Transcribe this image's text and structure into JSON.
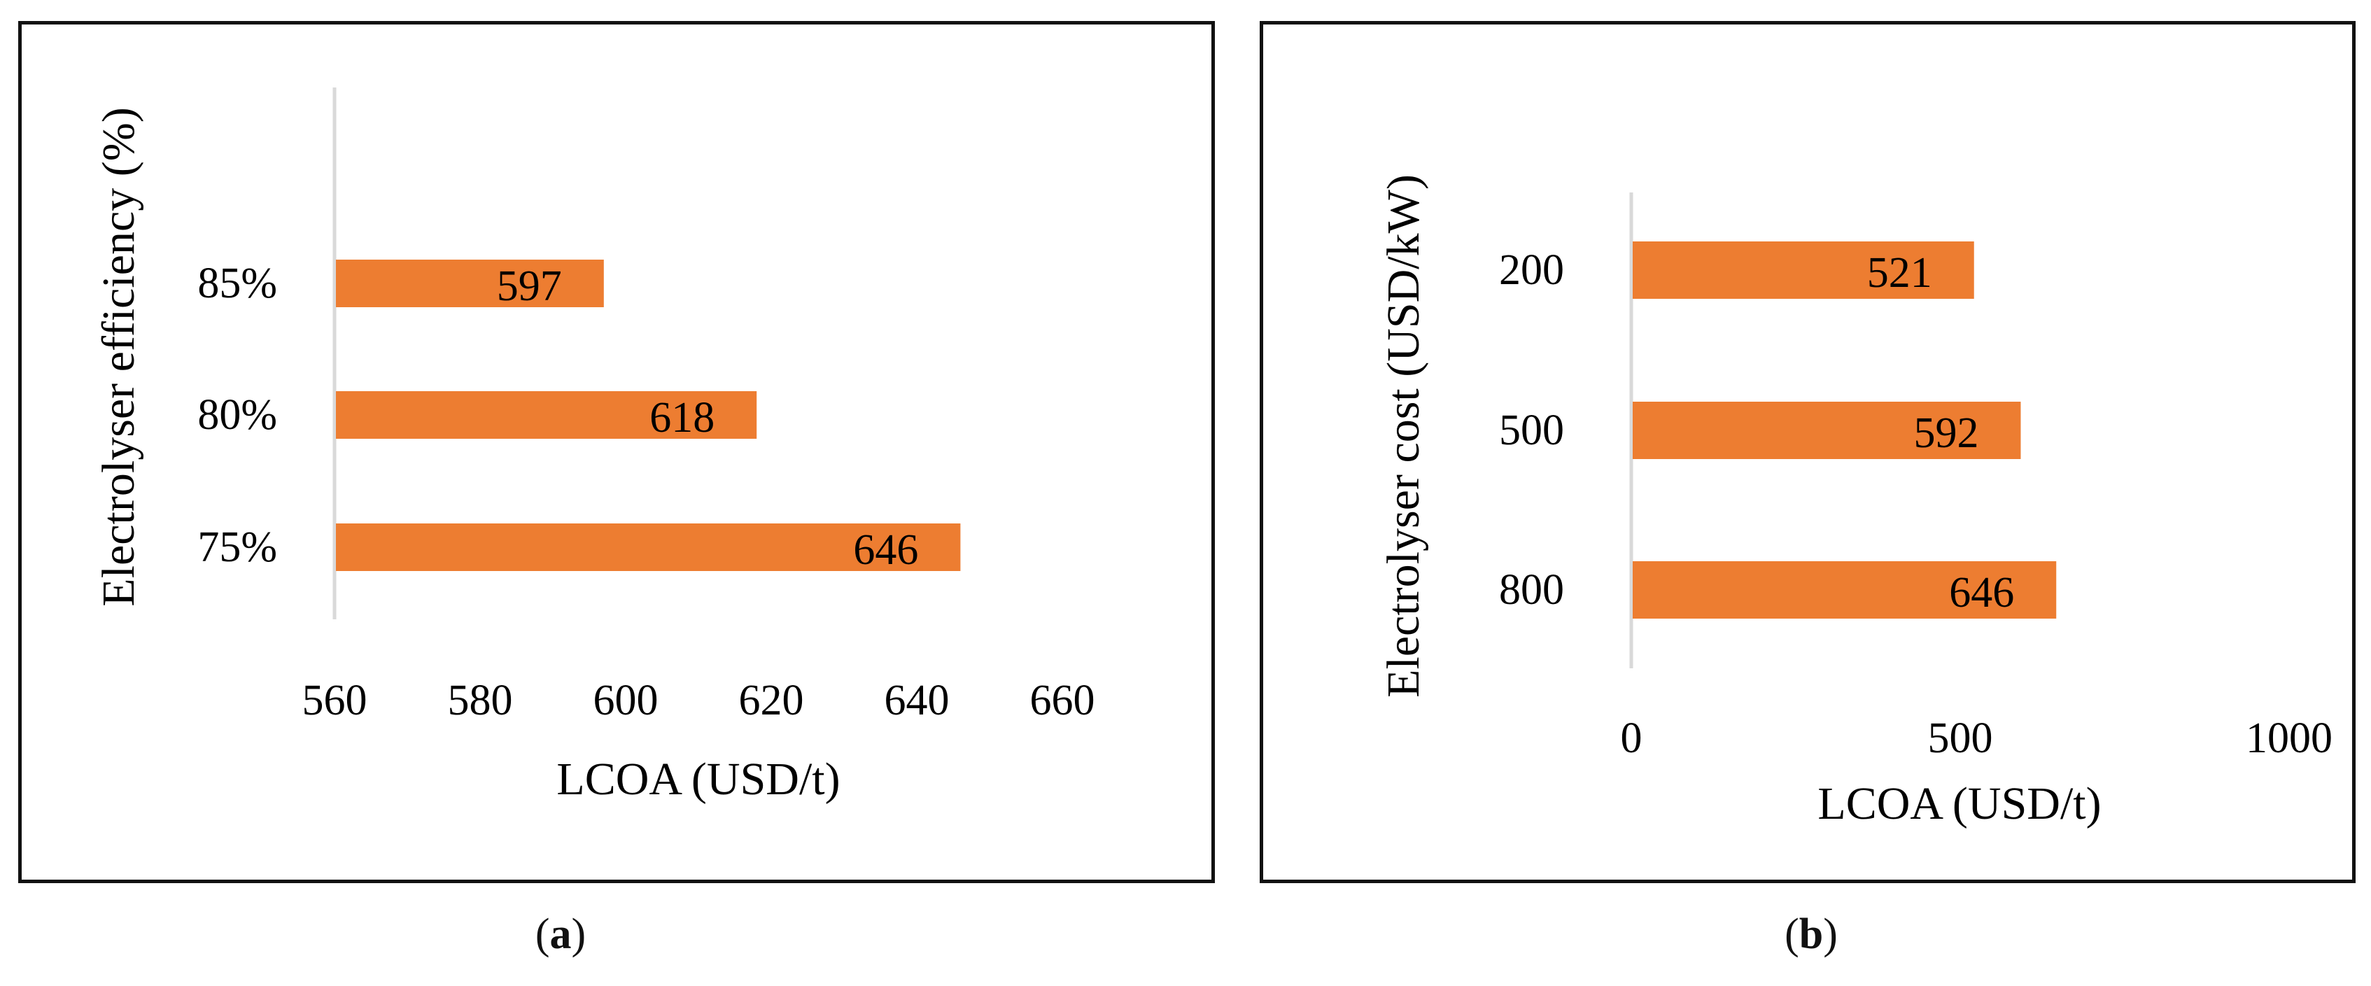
{
  "chart_data": [
    {
      "type": "bar",
      "orientation": "horizontal",
      "panel": "a",
      "categories": [
        "85%",
        "80%",
        "75%"
      ],
      "values": [
        597,
        618,
        646
      ],
      "xlabel": "LCOA (USD/t)",
      "ylabel": "Electrolyser efficiency (%)",
      "xlim": [
        560,
        660
      ],
      "xticks": [
        "560",
        "580",
        "600",
        "620",
        "640",
        "660"
      ],
      "bar_color": "#ED7D31",
      "data_labels": [
        "597",
        "618",
        "646"
      ],
      "grid": false
    },
    {
      "type": "bar",
      "orientation": "horizontal",
      "panel": "b",
      "categories": [
        "200",
        "500",
        "800"
      ],
      "values": [
        521,
        592,
        646
      ],
      "xlabel": "LCOA (USD/t)",
      "ylabel": "Electrolyser cost (USD/kW)",
      "xlim": [
        0,
        1000
      ],
      "xticks": [
        "0",
        "500",
        "1000"
      ],
      "bar_color": "#ED7D31",
      "data_labels": [
        "521",
        "592",
        "646"
      ],
      "grid": false
    }
  ],
  "captions": [
    {
      "open": "(",
      "letter": "a",
      "close": ")"
    },
    {
      "open": "(",
      "letter": "b",
      "close": ")"
    }
  ]
}
